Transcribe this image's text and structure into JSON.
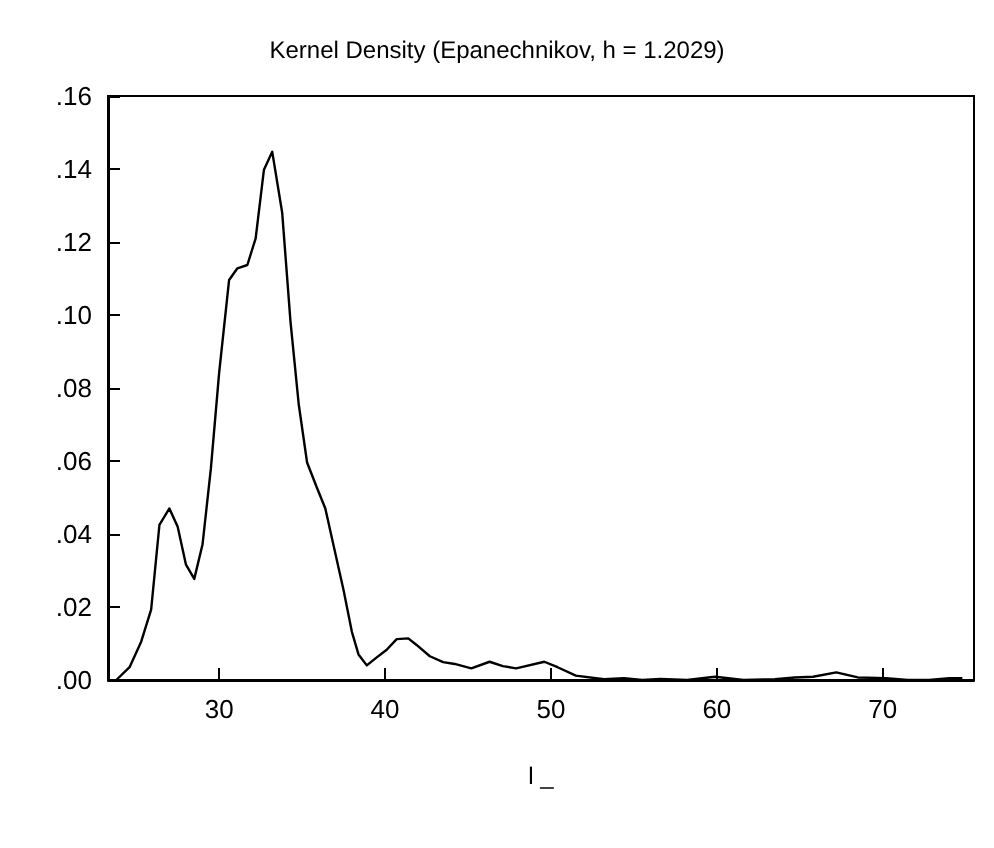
{
  "chart_data": {
    "type": "line",
    "title": "Kernel Density (Epanechnikov, h = 1.2029)",
    "xlabel": "l _",
    "x": [
      23.8,
      24.6,
      25.3,
      25.9,
      26.4,
      27.0,
      27.5,
      28.0,
      28.5,
      29.0,
      29.5,
      30.0,
      30.6,
      31.1,
      31.7,
      32.2,
      32.7,
      33.2,
      33.8,
      34.3,
      34.8,
      35.3,
      35.9,
      36.4,
      36.9,
      37.5,
      38.0,
      38.4,
      38.9,
      39.5,
      40.1,
      40.7,
      41.4,
      41.9,
      42.7,
      43.5,
      44.2,
      45.2,
      46.3,
      47.1,
      47.9,
      49.6,
      50.4,
      51.5,
      53.2,
      54.4,
      55.5,
      56.6,
      58.2,
      59.9,
      61.6,
      63.5,
      64.7,
      65.8,
      67.2,
      68.5,
      70.2,
      71.5,
      72.8,
      74.0,
      74.8
    ],
    "series": [
      {
        "color": "#000000",
        "values": [
          0,
          0.0035,
          0.0105,
          0.0193,
          0.0425,
          0.047,
          0.042,
          0.0316,
          0.0277,
          0.0372,
          0.0579,
          0.0842,
          0.1096,
          0.1128,
          0.1137,
          0.121,
          0.1398,
          0.1447,
          0.128,
          0.0982,
          0.0754,
          0.0596,
          0.0526,
          0.047,
          0.0368,
          0.0246,
          0.0132,
          0.007,
          0.004,
          0.0062,
          0.0083,
          0.0112,
          0.0114,
          0.0096,
          0.0065,
          0.0049,
          0.0044,
          0.0032,
          0.005,
          0.0038,
          0.0032,
          0.005,
          0.0035,
          0.0012,
          0.0002,
          0.0005,
          0,
          0.0003,
          0,
          0.0009,
          0,
          0.0002,
          0.0007,
          0.0009,
          0.0021,
          0.0007,
          0.0005,
          0,
          0,
          0.0005,
          0.0005
        ]
      }
    ],
    "xlim": [
      23.3,
      75.5
    ],
    "xticks": [
      30,
      40,
      50,
      60,
      70
    ],
    "ylim": [
      0,
      0.16
    ],
    "yticks": [
      {
        "value": 0,
        "label": ".00"
      },
      {
        "value": 0.02,
        "label": ".02"
      },
      {
        "value": 0.04,
        "label": ".04"
      },
      {
        "value": 0.06,
        "label": ".06"
      },
      {
        "value": 0.08,
        "label": ".08"
      },
      {
        "value": 0.1,
        "label": ".10"
      },
      {
        "value": 0.12,
        "label": ".12"
      },
      {
        "value": 0.14,
        "label": ".14"
      },
      {
        "value": 0.16,
        "label": ".16"
      }
    ],
    "grid": false,
    "marker": "none",
    "line_style": "solid"
  }
}
